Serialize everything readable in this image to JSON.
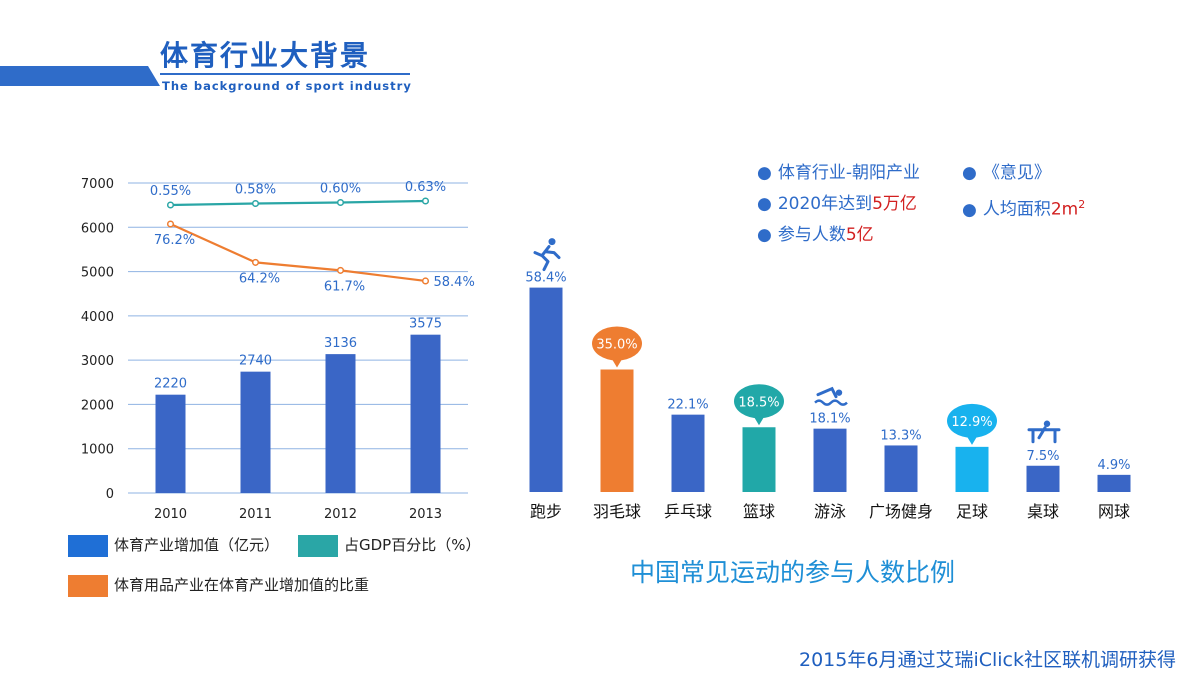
{
  "header": {
    "title": "体育行业大背景",
    "subtitle": "The background of sport industry",
    "accent_color": "#2f6cc9"
  },
  "notes": {
    "left": [
      "体育行业-朝阳产业",
      "2020年达到",
      "参与人数"
    ],
    "left_highlight": [
      "",
      "5万亿",
      "5亿"
    ],
    "right": [
      "《意见》",
      "人均面积"
    ],
    "right_highlight": [
      "",
      "2m"
    ],
    "right_sup": [
      "",
      "2"
    ]
  },
  "chart_data": [
    {
      "type": "bar",
      "categories": [
        "2010",
        "2011",
        "2012",
        "2013"
      ],
      "yticks": [
        0,
        1000,
        2000,
        3000,
        4000,
        5000,
        6000,
        7000
      ],
      "ylim": [
        0,
        7000
      ],
      "series": [
        {
          "name": "体育产业增加值（亿元）",
          "type": "bar",
          "values": [
            2220,
            2740,
            3136,
            3575
          ],
          "labels": [
            "2220",
            "2740",
            "3136",
            "3575"
          ],
          "color": "#3a66c6"
        },
        {
          "name": "占GDP百分比（%）",
          "type": "line",
          "values": [
            0.55,
            0.58,
            0.6,
            0.63
          ],
          "labels": [
            "0.55%",
            "0.58%",
            "0.60%",
            "0.63%"
          ],
          "color": "#2aa6a6"
        },
        {
          "name": "体育用品产业在体育产业增加值的比重",
          "type": "line",
          "values": [
            76.2,
            64.2,
            61.7,
            58.4
          ],
          "labels": [
            "76.2%",
            "64.2%",
            "61.7%",
            "58.4%"
          ],
          "color": "#ee7d31"
        }
      ],
      "grid": true,
      "legend_position": "bottom"
    },
    {
      "type": "bar",
      "title": "中国常见运动的参与人数比例",
      "categories": [
        "跑步",
        "羽毛球",
        "乒乓球",
        "篮球",
        "游泳",
        "广场健身",
        "足球",
        "桌球",
        "网球"
      ],
      "values": [
        58.4,
        35.0,
        22.1,
        18.5,
        18.1,
        13.3,
        12.9,
        7.5,
        4.9
      ],
      "labels": [
        "58.4%",
        "35.0%",
        "22.1%",
        "18.5%",
        "18.1%",
        "13.3%",
        "12.9%",
        "7.5%",
        "4.9%"
      ],
      "colors": [
        "#3a66c6",
        "#ee7d31",
        "#3a66c6",
        "#21a8a8",
        "#3a66c6",
        "#3a66c6",
        "#18b2ee",
        "#3a66c6",
        "#3a66c6"
      ],
      "highlighted": [
        false,
        true,
        false,
        true,
        false,
        false,
        true,
        false,
        false
      ],
      "ylim": [
        0,
        60
      ],
      "icons": [
        "running-icon",
        "",
        "",
        "",
        "swimming-icon",
        "",
        "",
        "billiards-icon",
        ""
      ],
      "grid": false
    }
  ],
  "source": "2015年6月通过艾瑞iClick社区联机调研获得"
}
